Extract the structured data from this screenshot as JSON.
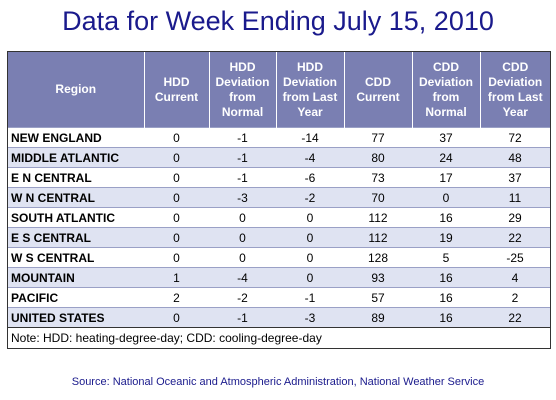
{
  "title": "Data for Week Ending July 15, 2010",
  "table": {
    "headers": [
      "Region",
      "HDD Current",
      "HDD Deviation from Normal",
      "HDD Deviation from Last Year",
      "CDD Current",
      "CDD Deviation from Normal",
      "CDD Deviation from Last Year"
    ],
    "rows": [
      [
        "NEW ENGLAND",
        "0",
        "-1",
        "-14",
        "77",
        "37",
        "72"
      ],
      [
        "MIDDLE ATLANTIC",
        "0",
        "-1",
        "-4",
        "80",
        "24",
        "48"
      ],
      [
        "E N CENTRAL",
        "0",
        "-1",
        "-6",
        "73",
        "17",
        "37"
      ],
      [
        "W N CENTRAL",
        "0",
        "-3",
        "-2",
        "70",
        "0",
        "11"
      ],
      [
        "SOUTH ATLANTIC",
        "0",
        "0",
        "0",
        "112",
        "16",
        "29"
      ],
      [
        "E S CENTRAL",
        "0",
        "0",
        "0",
        "112",
        "19",
        "22"
      ],
      [
        "W S CENTRAL",
        "0",
        "0",
        "0",
        "128",
        "5",
        "-25"
      ],
      [
        "MOUNTAIN",
        "1",
        "-4",
        "0",
        "93",
        "16",
        "4"
      ],
      [
        "PACIFIC",
        "2",
        "-2",
        "-1",
        "57",
        "16",
        "2"
      ],
      [
        "UNITED STATES",
        "0",
        "-1",
        "-3",
        "89",
        "16",
        "22"
      ]
    ]
  },
  "note": "Note: HDD: heating-degree-day; CDD: cooling-degree-day",
  "source": "Source:  National Oceanic and Atmospheric Administration, National Weather Service"
}
